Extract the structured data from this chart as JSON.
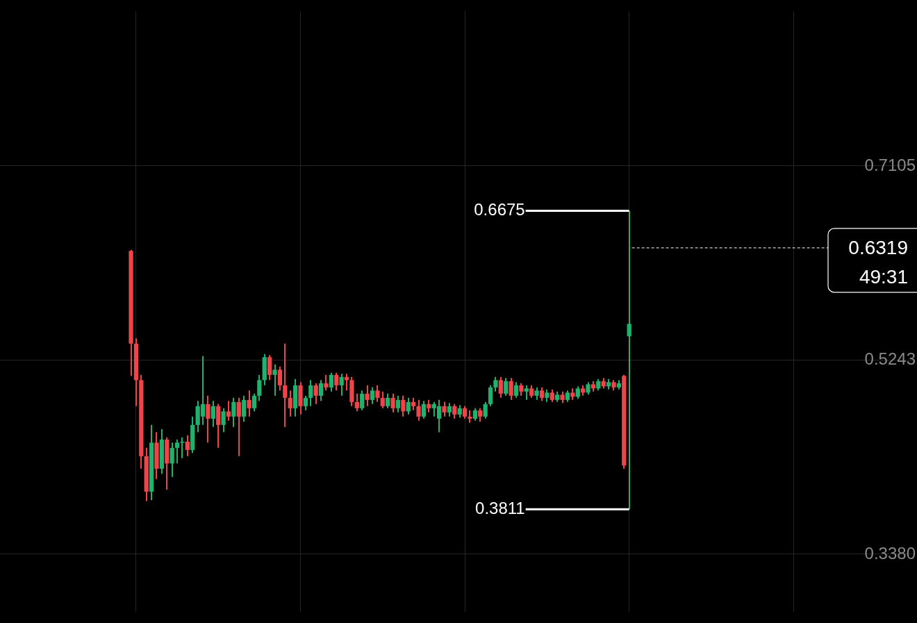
{
  "chart_data": {
    "type": "candlestick",
    "categories": [
      null,
      null,
      null,
      null,
      null,
      null,
      null,
      null,
      null,
      null,
      null,
      null,
      null,
      null,
      null,
      null,
      null,
      null,
      null,
      null,
      null,
      null,
      null,
      null,
      null,
      null,
      null,
      null,
      null,
      null,
      null,
      null,
      null,
      null,
      null,
      null,
      null,
      null,
      null,
      null,
      null,
      null,
      null,
      null,
      null,
      null,
      null,
      null,
      null,
      null,
      null,
      null,
      null,
      null,
      null,
      null,
      null,
      null,
      null,
      null,
      null,
      null,
      null,
      null,
      null,
      null,
      null,
      null,
      null,
      null,
      null,
      null,
      null,
      null,
      null,
      null,
      null,
      null,
      null,
      null,
      null,
      null,
      null,
      null,
      null,
      null,
      null,
      null,
      null,
      null,
      null,
      null,
      null,
      null,
      null,
      null,
      null,
      null,
      null,
      null,
      null,
      null,
      null,
      null,
      null,
      null,
      null,
      null,
      null,
      null,
      null,
      null,
      null,
      null,
      null,
      null,
      null,
      null,
      null,
      null,
      null,
      null,
      null,
      null,
      null,
      null,
      null,
      null,
      null,
      null,
      null,
      null,
      null,
      null,
      null,
      null,
      null,
      null,
      null,
      null,
      null,
      null,
      null,
      null,
      null,
      null,
      null,
      null,
      null,
      null,
      null,
      null,
      null,
      null,
      null,
      null,
      null,
      null,
      null,
      null,
      null,
      null,
      null,
      null,
      null,
      null,
      null,
      null,
      null,
      null,
      null,
      null,
      null,
      null,
      null,
      null,
      null,
      null
    ],
    "ohlc": [
      null,
      null,
      null,
      null,
      null,
      null,
      null,
      null,
      null,
      null,
      null,
      null,
      null,
      null,
      null,
      null,
      null,
      null,
      null,
      null,
      null,
      null,
      null,
      null,
      null,
      [
        0.629,
        0.63,
        0.509,
        0.54
      ],
      [
        0.54,
        0.545,
        0.48,
        0.505
      ],
      [
        0.505,
        0.51,
        0.42,
        0.432
      ],
      [
        0.432,
        0.44,
        0.389,
        0.398
      ],
      [
        0.398,
        0.462,
        0.39,
        0.445
      ],
      [
        0.445,
        0.455,
        0.41,
        0.42
      ],
      [
        0.42,
        0.458,
        0.415,
        0.448
      ],
      [
        0.448,
        0.45,
        0.4,
        0.425
      ],
      [
        0.425,
        0.445,
        0.412,
        0.44
      ],
      [
        0.44,
        0.448,
        0.425,
        0.445
      ],
      [
        0.445,
        0.45,
        0.43,
        0.446
      ],
      [
        0.446,
        0.452,
        0.432,
        0.438
      ],
      [
        0.438,
        0.47,
        0.435,
        0.462
      ],
      [
        0.462,
        0.485,
        0.455,
        0.48
      ],
      [
        0.47,
        0.528,
        0.462,
        0.482
      ],
      [
        0.482,
        0.49,
        0.445,
        0.468
      ],
      [
        0.468,
        0.485,
        0.46,
        0.48
      ],
      [
        0.48,
        0.482,
        0.44,
        0.462
      ],
      [
        0.462,
        0.478,
        0.455,
        0.475
      ],
      [
        0.475,
        0.485,
        0.466,
        0.47
      ],
      [
        0.47,
        0.488,
        0.46,
        0.484
      ],
      [
        0.484,
        0.488,
        0.432,
        0.47
      ],
      [
        0.47,
        0.49,
        0.465,
        0.486
      ],
      [
        0.486,
        0.495,
        0.47,
        0.478
      ],
      [
        0.478,
        0.492,
        0.475,
        0.49
      ],
      [
        0.49,
        0.51,
        0.485,
        0.505
      ],
      [
        0.505,
        0.53,
        0.5,
        0.527
      ],
      [
        0.527,
        0.529,
        0.505,
        0.51
      ],
      [
        0.51,
        0.52,
        0.49,
        0.515
      ],
      [
        0.515,
        0.518,
        0.495,
        0.5
      ],
      [
        0.5,
        0.54,
        0.46,
        0.488
      ],
      [
        0.488,
        0.495,
        0.47,
        0.478
      ],
      [
        0.478,
        0.506,
        0.47,
        0.5
      ],
      [
        0.5,
        0.503,
        0.472,
        0.48
      ],
      [
        0.48,
        0.49,
        0.476,
        0.488
      ],
      [
        0.488,
        0.505,
        0.48,
        0.5
      ],
      [
        0.5,
        0.502,
        0.482,
        0.49
      ],
      [
        0.49,
        0.505,
        0.485,
        0.502
      ],
      [
        0.502,
        0.51,
        0.495,
        0.498
      ],
      [
        0.498,
        0.512,
        0.494,
        0.51
      ],
      [
        0.51,
        0.512,
        0.495,
        0.5
      ],
      [
        0.5,
        0.511,
        0.49,
        0.508
      ],
      [
        0.508,
        0.511,
        0.495,
        0.505
      ],
      [
        0.505,
        0.508,
        0.48,
        0.484
      ],
      [
        0.484,
        0.492,
        0.475,
        0.478
      ],
      [
        0.478,
        0.495,
        0.476,
        0.492
      ],
      [
        0.492,
        0.5,
        0.48,
        0.486
      ],
      [
        0.486,
        0.498,
        0.482,
        0.495
      ],
      [
        0.495,
        0.5,
        0.484,
        0.488
      ],
      [
        0.488,
        0.494,
        0.478,
        0.48
      ],
      [
        0.48,
        0.492,
        0.478,
        0.488
      ],
      [
        0.488,
        0.492,
        0.474,
        0.478
      ],
      [
        0.478,
        0.49,
        0.474,
        0.486
      ],
      [
        0.486,
        0.49,
        0.47,
        0.475
      ],
      [
        0.475,
        0.488,
        0.472,
        0.484
      ],
      [
        0.484,
        0.488,
        0.476,
        0.48
      ],
      [
        0.48,
        0.486,
        0.466,
        0.47
      ],
      [
        0.47,
        0.485,
        0.468,
        0.482
      ],
      [
        0.482,
        0.486,
        0.474,
        0.478
      ],
      [
        0.478,
        0.484,
        0.47,
        0.482
      ],
      [
        0.468,
        0.486,
        0.455,
        0.48
      ],
      [
        0.48,
        0.484,
        0.47,
        0.474
      ],
      [
        0.474,
        0.483,
        0.47,
        0.48
      ],
      [
        0.48,
        0.482,
        0.468,
        0.472
      ],
      [
        0.472,
        0.481,
        0.469,
        0.478
      ],
      [
        0.478,
        0.48,
        0.468,
        0.47
      ],
      [
        0.47,
        0.476,
        0.464,
        0.468
      ],
      [
        0.468,
        0.478,
        0.466,
        0.476
      ],
      [
        0.476,
        0.478,
        0.465,
        0.47
      ],
      [
        0.47,
        0.484,
        0.468,
        0.482
      ],
      [
        0.482,
        0.5,
        0.48,
        0.498
      ],
      [
        0.498,
        0.508,
        0.494,
        0.505
      ],
      [
        0.505,
        0.508,
        0.488,
        0.492
      ],
      [
        0.492,
        0.507,
        0.49,
        0.504
      ],
      [
        0.504,
        0.507,
        0.486,
        0.49
      ],
      [
        0.49,
        0.503,
        0.488,
        0.5
      ],
      [
        0.5,
        0.502,
        0.49,
        0.494
      ],
      [
        0.494,
        0.5,
        0.486,
        0.497
      ],
      [
        0.497,
        0.5,
        0.488,
        0.49
      ],
      [
        0.49,
        0.498,
        0.486,
        0.495
      ],
      [
        0.495,
        0.498,
        0.485,
        0.488
      ],
      [
        0.488,
        0.496,
        0.484,
        0.493
      ],
      [
        0.493,
        0.496,
        0.484,
        0.486
      ],
      [
        0.486,
        0.494,
        0.484,
        0.491
      ],
      [
        0.491,
        0.494,
        0.483,
        0.486
      ],
      [
        0.486,
        0.495,
        0.484,
        0.493
      ],
      [
        0.493,
        0.497,
        0.486,
        0.489
      ],
      [
        0.489,
        0.499,
        0.487,
        0.497
      ],
      [
        0.497,
        0.5,
        0.49,
        0.493
      ],
      [
        0.493,
        0.503,
        0.491,
        0.501
      ],
      [
        0.501,
        0.504,
        0.494,
        0.497
      ],
      [
        0.497,
        0.506,
        0.495,
        0.504
      ],
      [
        0.504,
        0.507,
        0.497,
        0.499
      ],
      [
        0.499,
        0.506,
        0.496,
        0.503
      ],
      [
        0.503,
        0.505,
        0.495,
        0.498
      ],
      [
        0.498,
        0.505,
        0.496,
        0.502
      ],
      [
        0.509,
        0.51,
        0.42,
        0.423
      ],
      [
        0.547,
        0.6675,
        0.3811,
        0.559
      ],
      null,
      null,
      null,
      null,
      null,
      null,
      null,
      null,
      null,
      null,
      null,
      null,
      null,
      null,
      null,
      null,
      null,
      null,
      null,
      null,
      null,
      null,
      null,
      null,
      null,
      null,
      null,
      null,
      null,
      null,
      null,
      null,
      null,
      null,
      null,
      null,
      null,
      null,
      null,
      null,
      null,
      null,
      null,
      null,
      null,
      null,
      null,
      null,
      null,
      null,
      null,
      null,
      null,
      null,
      null
    ],
    "ylim": [
      0.2829,
      0.8588
    ],
    "yticks": [
      {
        "value": 0.338,
        "label": "0.3380"
      },
      {
        "value": 0.5243,
        "label": "0.5243"
      },
      {
        "value": 0.7105,
        "label": "0.7105"
      }
    ],
    "grid": true,
    "legend": false,
    "ref_lines": [
      {
        "axis": "y",
        "value": 0.6319,
        "label": "0.6319",
        "color": "#ffffff",
        "line_style": "dashed"
      }
    ],
    "annotations": [
      "0.6675",
      "0.3811",
      "49:31"
    ]
  }
}
